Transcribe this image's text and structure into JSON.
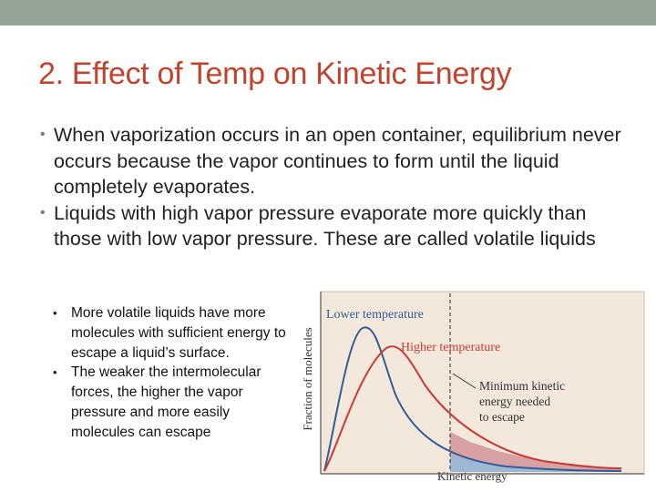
{
  "slide": {
    "title": "2. Effect of Temp on Kinetic Energy",
    "colors": {
      "topbar": "#94a596",
      "title": "#c0432e",
      "lower_curve": "#2f5f98",
      "higher_curve": "#c63b35"
    }
  },
  "bullets": [
    "When vaporization occurs in an open container, equilibrium never occurs because the vapor continues to form until the liquid completely evaporates.",
    "Liquids with high vapor pressure evaporate more quickly than those with low vapor pressure. These are called volatile liquids"
  ],
  "sub_bullets": [
    "More volatile liquids have more molecules with sufficient energy to escape a liquid’s surface.",
    "The weaker the intermolecular forces, the higher the vapor pressure and more easily molecules can escape"
  ],
  "figure": {
    "ylabel": "Fraction of molecules",
    "xlabel": "Kinetic energy",
    "lower_label": "Lower temperature",
    "higher_label": "Higher temperature",
    "threshold_lines": [
      "Minimum kinetic",
      "energy needed",
      "to escape"
    ]
  }
}
